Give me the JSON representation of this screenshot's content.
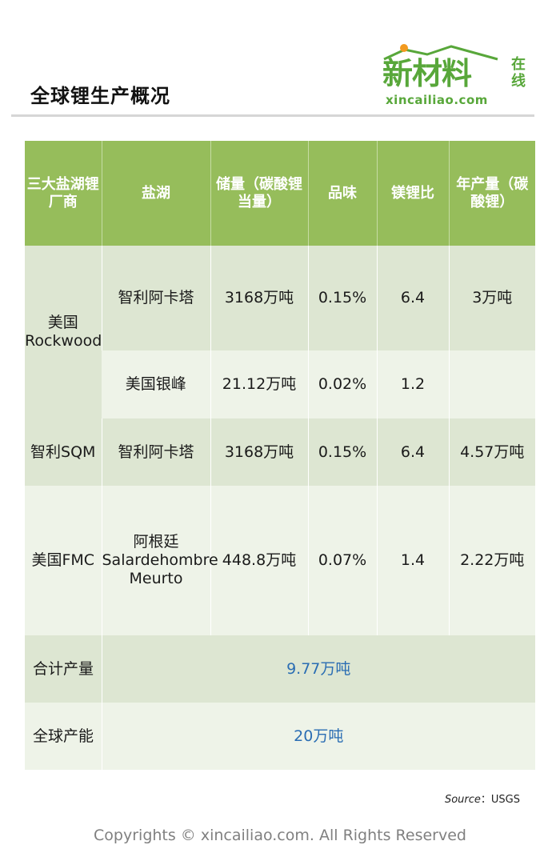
{
  "page_title": "全球锂生产概况",
  "logo": {
    "main": "新材料",
    "side": "在线",
    "domain": "xincailiao.com",
    "colors": {
      "green": "#58a73a",
      "orange_dot": "#f29a1f"
    }
  },
  "table": {
    "headers": [
      "三大盐湖锂厂商",
      "盐湖",
      "储量（碳酸锂当量）",
      "品味",
      "镁锂比",
      "年产量（碳酸锂）"
    ],
    "rows": [
      {
        "company": "美国Rockwood",
        "lakes": [
          {
            "name": "智利阿卡塔",
            "reserve": "3168万吨",
            "grade": "0.15%",
            "mg_li": "6.4",
            "output": "3万吨"
          },
          {
            "name": "美国银峰",
            "reserve": "21.12万吨",
            "grade": "0.02%",
            "mg_li": "1.2",
            "output": ""
          }
        ]
      },
      {
        "company": "智利SQM",
        "lakes": [
          {
            "name": "智利阿卡塔",
            "reserve": "3168万吨",
            "grade": "0.15%",
            "mg_li": "6.4",
            "output": "4.57万吨"
          }
        ]
      },
      {
        "company": "美国FMC",
        "lakes": [
          {
            "name": "阿根廷Salardehombre Meurto",
            "reserve": "448.8万吨",
            "grade": "0.07%",
            "mg_li": "1.4",
            "output": "2.22万吨"
          }
        ]
      }
    ],
    "totals": [
      {
        "label": "合计产量",
        "value": "9.77万吨"
      },
      {
        "label": "全球产能",
        "value": "20万吨"
      }
    ],
    "colors": {
      "header_bg": "#96bd5b",
      "row_dark": "#dde6d2",
      "row_light": "#eef3e8",
      "total_value": "#2a6db3"
    }
  },
  "source": {
    "label": "Source",
    "separator": "：",
    "value": "USGS"
  },
  "copyright": "Copyrights © xincailiao.com. All Rights Reserved"
}
